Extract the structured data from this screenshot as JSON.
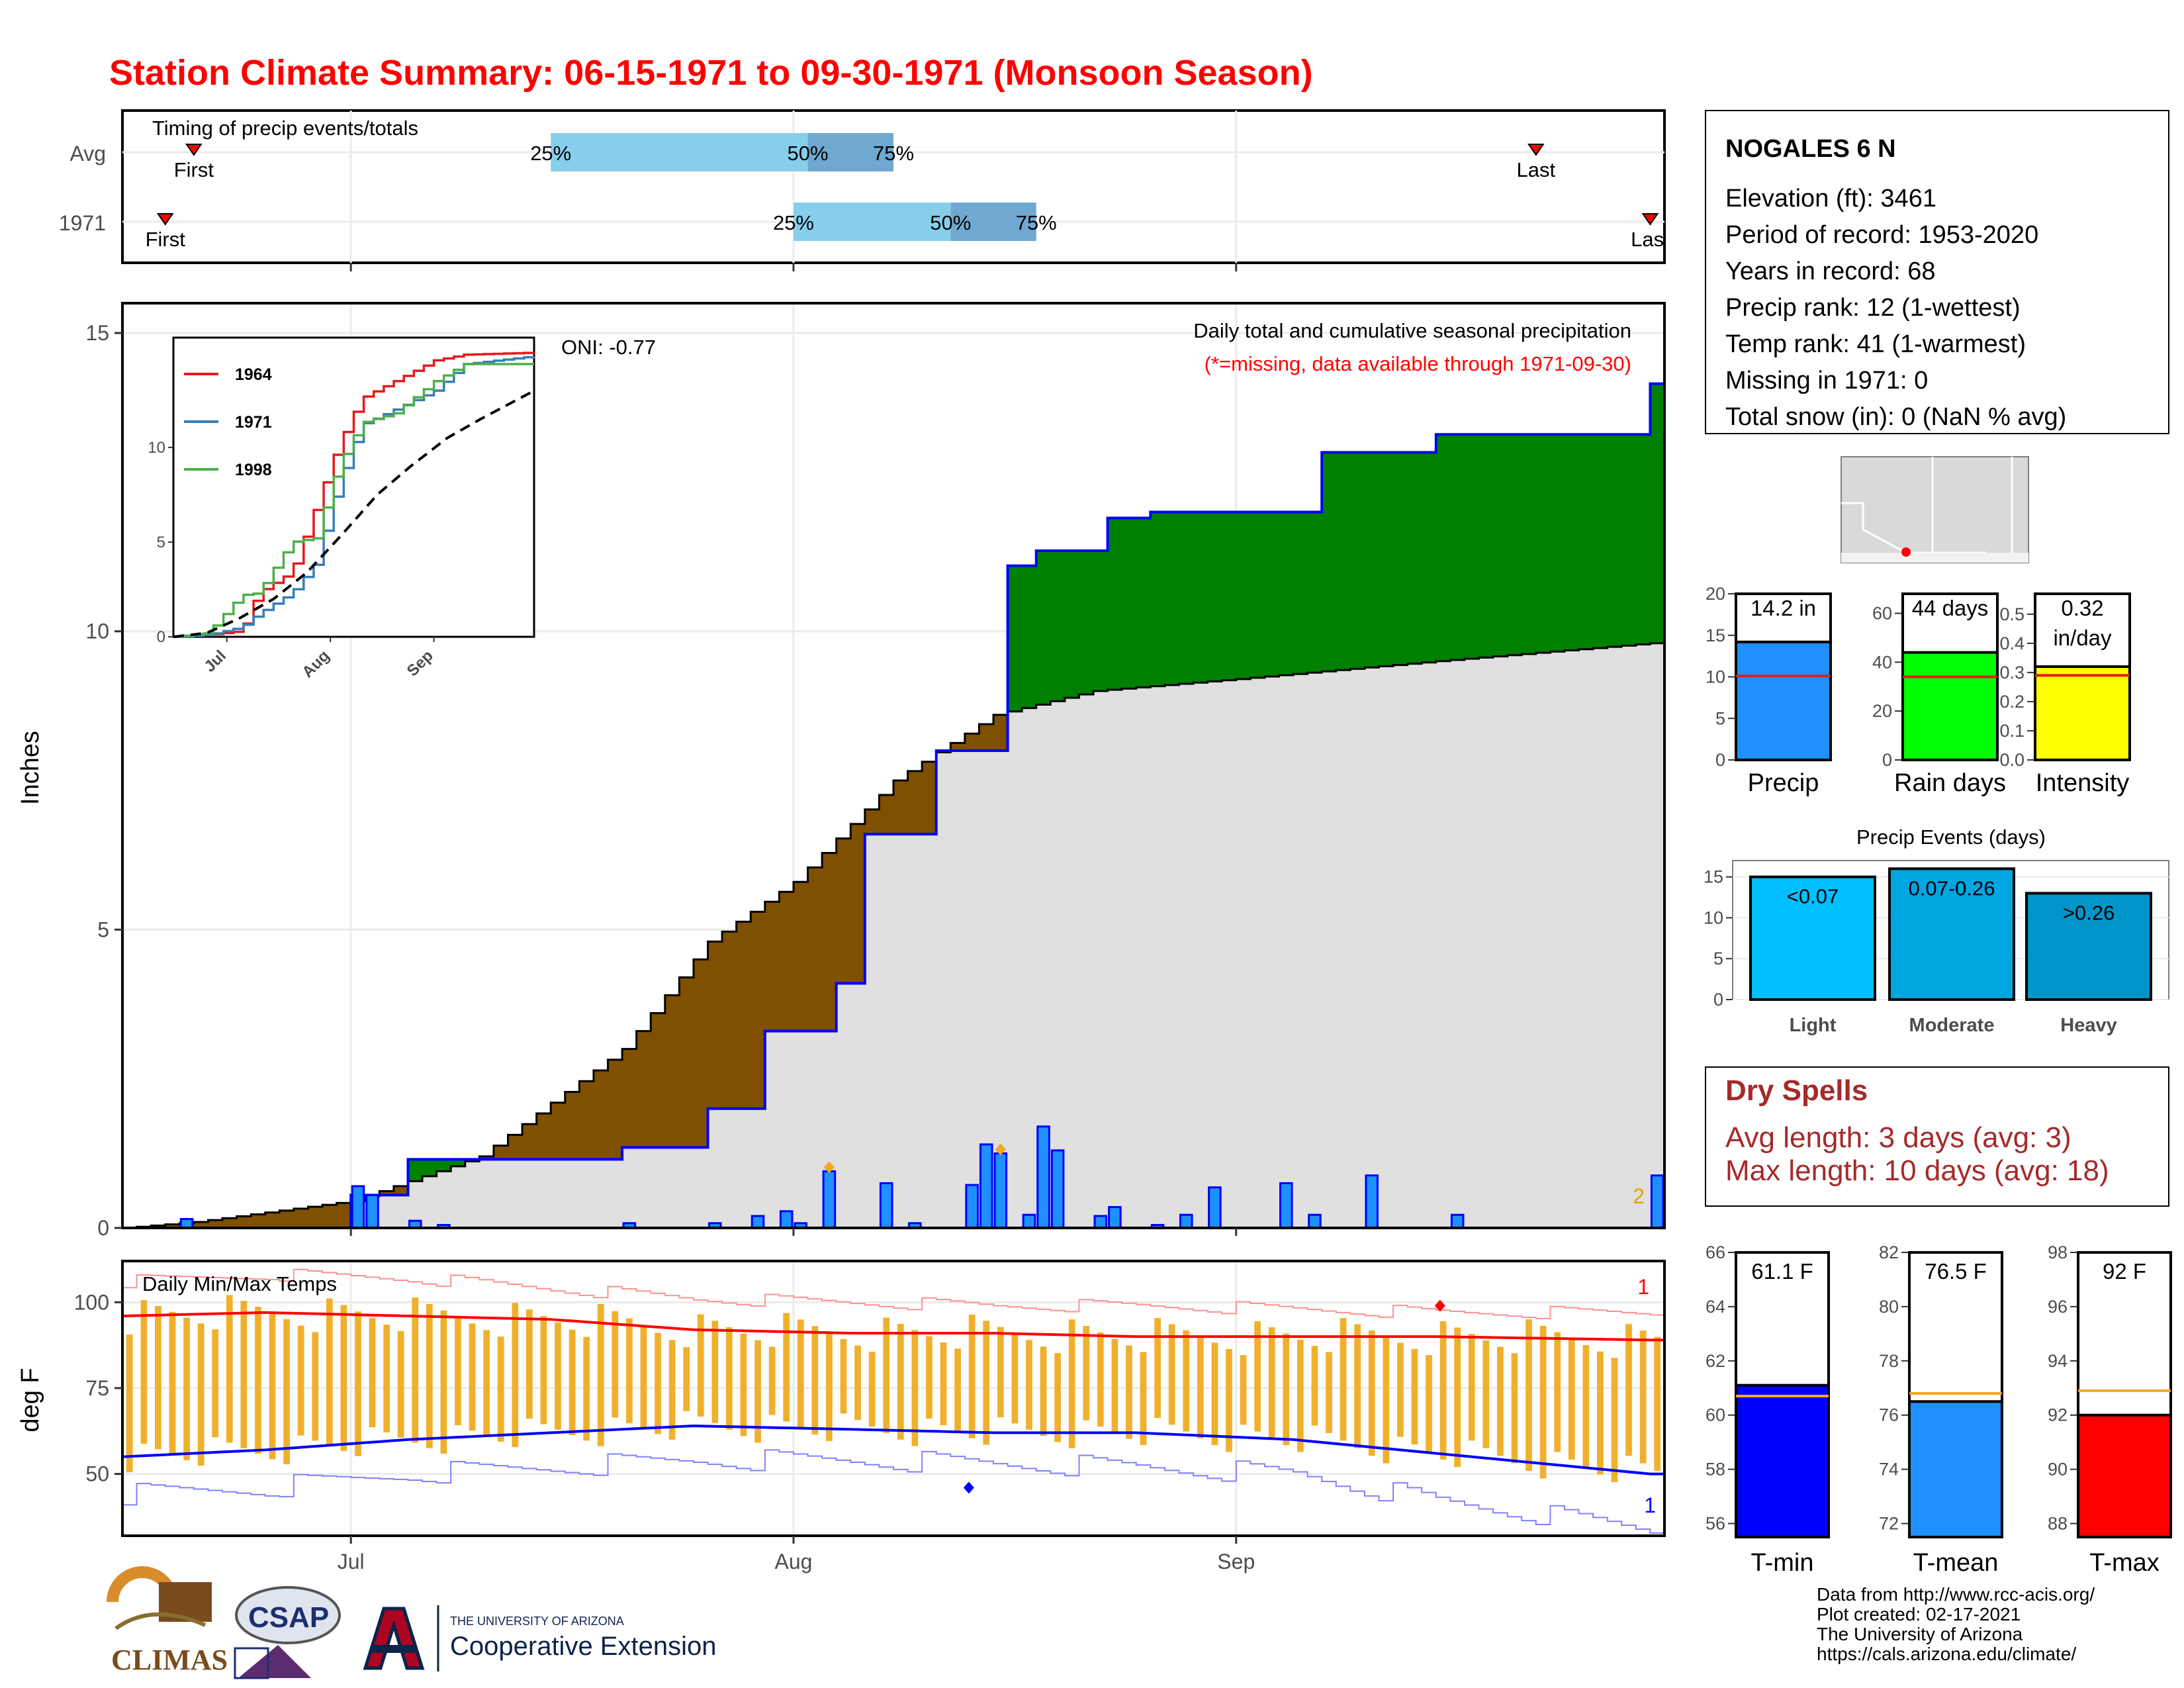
{
  "title": "Station Climate Summary: 06-15-1971 to 09-30-1971 (Monsoon Season)",
  "timing": {
    "label": "Timing of precip events/totals",
    "rows": [
      {
        "name": "Avg",
        "first_label": "First",
        "last_label": "Last",
        "first": "06-20",
        "last": "09-22",
        "q25": "07-15",
        "q50": "08-02",
        "q75": "08-08",
        "p25": "25%",
        "p50": "50%",
        "p75": "75%"
      },
      {
        "name": "1971",
        "first_label": "First",
        "last_label": "Last",
        "first": "06-18",
        "last": "09-30",
        "q25": "08-01",
        "q50": "08-12",
        "q75": "08-18",
        "p25": "25%",
        "p50": "50%",
        "p75": "75%"
      }
    ]
  },
  "info": {
    "station": "NOGALES 6 N",
    "lines": [
      "Elevation (ft): 3461",
      "Period of record: 1953-2020",
      "Years in record: 68",
      "Precip rank: 12 (1-wettest)",
      "Temp rank: 41 (1-warmest)",
      "Missing in 1971: 0",
      "Total snow (in): 0 (NaN % avg)"
    ]
  },
  "main": {
    "ylabel": "Inches",
    "annotation_title": "Daily total and cumulative seasonal precipitation",
    "annotation_missing": "(*=missing, data available through 1971-09-30)",
    "oni": "ONI: -0.77",
    "edge_label": "2",
    "x_ticks": [
      "Jul",
      "Aug",
      "Sep"
    ],
    "y_ticks": [
      "0",
      "5",
      "10",
      "15"
    ]
  },
  "inset": {
    "x_ticks": [
      "Jul",
      "Aug",
      "Sep"
    ],
    "y_ticks": [
      "0",
      "5",
      "10"
    ],
    "legend": [
      {
        "name": "1964",
        "color": "#e41a1c"
      },
      {
        "name": "1971",
        "color": "#377eb8"
      },
      {
        "name": "1998",
        "color": "#4daf4a"
      }
    ]
  },
  "temps": {
    "label": "Daily Min/Max Temps",
    "ylabel": "deg F",
    "y_ticks": [
      "50",
      "75",
      "100"
    ],
    "count_top": "1",
    "count_bottom": "1"
  },
  "bars_top": [
    {
      "name": "Precip",
      "value_label": "14.2 in",
      "value": 14.2,
      "avg": 10.1,
      "ymax": 20,
      "ticks": [
        "0",
        "5",
        "10",
        "15",
        "20"
      ],
      "color": "#1e90ff"
    },
    {
      "name": "Rain days",
      "value_label": "44 days",
      "value": 44,
      "avg": 34,
      "ymax": 68,
      "ticks": [
        "0",
        "20",
        "40",
        "60"
      ],
      "color": "#00ff00"
    },
    {
      "name": "Intensity",
      "value_label": "0.32",
      "value_label2": "in/day",
      "value": 0.32,
      "avg": 0.29,
      "ymax": 0.57,
      "ticks": [
        "0.0",
        "0.1",
        "0.2",
        "0.3",
        "0.4",
        "0.5"
      ],
      "color": "#ffff00"
    }
  ],
  "events": {
    "title": "Precip Events (days)",
    "ticks": [
      "0",
      "5",
      "10",
      "15"
    ],
    "bars": [
      {
        "name": "Light",
        "label": "<0.07",
        "value": 15,
        "color": "#00bfff"
      },
      {
        "name": "Moderate",
        "label": "0.07-0.26",
        "value": 16,
        "color": "#00a6e0"
      },
      {
        "name": "Heavy",
        "label": ">0.26",
        "value": 13,
        "color": "#0095c8"
      }
    ]
  },
  "dry_spells": {
    "title": "Dry Spells",
    "avg": "Avg length: 3 days (avg: 3)",
    "max": "Max length: 10 days (avg: 18)"
  },
  "bars_temp": [
    {
      "name": "T-min",
      "value_label": "61.1 F",
      "value": 61.1,
      "avg": 60.7,
      "ymin": 55.5,
      "ymax": 66,
      "ticks": [
        "56",
        "58",
        "60",
        "62",
        "64",
        "66"
      ],
      "color": "#0000ff"
    },
    {
      "name": "T-mean",
      "value_label": "76.5 F",
      "value": 76.5,
      "avg": 76.8,
      "ymin": 71.5,
      "ymax": 82,
      "ticks": [
        "72",
        "74",
        "76",
        "78",
        "80",
        "82"
      ],
      "color": "#1e90ff"
    },
    {
      "name": "T-max",
      "value_label": "92 F",
      "value": 92,
      "avg": 92.9,
      "ymin": 87.5,
      "ymax": 98,
      "ticks": [
        "88",
        "90",
        "92",
        "94",
        "96",
        "98"
      ],
      "color": "#ff0000"
    }
  ],
  "credits": [
    "Data from http://www.rcc-acis.org/",
    "Plot created: 02-17-2021",
    "The University of Arizona",
    "https://cals.arizona.edu/climate/"
  ],
  "logos": {
    "climas": "CLIMAS",
    "csap": "CSAP",
    "ua_small": "THE UNIVERSITY OF ARIZONA",
    "ua_big": "Cooperative Extension"
  },
  "chart_data": {
    "type": "area",
    "x_start": "06-15",
    "x_end": "09-30",
    "ylabel": "Inches",
    "ylim": [
      0,
      15.5
    ],
    "series": [
      {
        "name": "",
        "x": [
          "06-15",
          "06-20",
          "07-01",
          "07-10",
          "07-20",
          "07-26",
          "08-01",
          "08-08",
          "08-15",
          "08-22",
          "09-01",
          "09-15",
          "09-30"
        ],
        "values": [
          0.0,
          0.1,
          0.45,
          1.2,
          3.0,
          4.8,
          5.8,
          7.5,
          8.6,
          9.0,
          9.2,
          9.5,
          9.8
        ]
      },
      {
        "name": "",
        "x": [
          "06-15",
          "06-20",
          "07-01",
          "07-05",
          "07-20",
          "07-26",
          "07-30",
          "08-04",
          "08-06",
          "08-11",
          "08-16",
          "08-18",
          "08-23",
          "08-26",
          "09-07",
          "09-15",
          "09-30"
        ],
        "values": [
          0.0,
          0.0,
          0.55,
          1.15,
          1.35,
          2.0,
          3.3,
          4.1,
          6.6,
          8.0,
          11.1,
          11.35,
          11.9,
          12.0,
          13.0,
          13.3,
          14.15
        ]
      }
    ],
    "daily_precip": {
      "x": [
        "06-19",
        "07-01",
        "07-02",
        "07-05",
        "07-07",
        "07-20",
        "07-26",
        "07-29",
        "07-31",
        "08-01",
        "08-03",
        "08-07",
        "08-09",
        "08-13",
        "08-14",
        "08-15",
        "08-17",
        "08-18",
        "08-19",
        "08-22",
        "08-23",
        "08-26",
        "08-28",
        "08-30",
        "09-04",
        "09-06",
        "09-10",
        "09-16",
        "09-30"
      ],
      "values": [
        0.15,
        0.7,
        0.55,
        0.12,
        0.05,
        0.08,
        0.08,
        0.2,
        0.28,
        0.08,
        0.95,
        0.75,
        0.08,
        0.72,
        1.4,
        1.25,
        0.22,
        1.7,
        1.3,
        0.2,
        0.35,
        0.05,
        0.22,
        0.68,
        0.75,
        0.22,
        0.88,
        0.22,
        0.88
      ]
    },
    "inset_series": [
      {
        "name": "1964",
        "x": [
          "06-15",
          "06-25",
          "07-05",
          "07-10",
          "07-20",
          "07-27",
          "08-03",
          "08-10",
          "08-20",
          "09-01",
          "09-10",
          "09-30"
        ],
        "values": [
          0,
          0.1,
          0.3,
          2.3,
          3.4,
          6.7,
          10.1,
          12.6,
          13.5,
          14.6,
          14.9,
          15.0
        ]
      },
      {
        "name": "1971",
        "x": [
          "06-15",
          "06-25",
          "07-05",
          "07-10",
          "07-20",
          "07-27",
          "08-03",
          "08-10",
          "08-20",
          "09-01",
          "09-10",
          "09-30"
        ],
        "values": [
          0,
          0.1,
          0.5,
          1.2,
          2.3,
          3.8,
          8.0,
          11.2,
          12.0,
          13.0,
          14.4,
          14.8
        ]
      },
      {
        "name": "1998",
        "x": [
          "06-15",
          "06-25",
          "07-05",
          "07-10",
          "07-20",
          "07-27",
          "08-03",
          "08-10",
          "08-20",
          "09-01",
          "09-10",
          "09-30"
        ],
        "values": [
          0,
          0.2,
          2.2,
          2.3,
          5.0,
          5.2,
          9.0,
          11.3,
          11.8,
          13.5,
          14.4,
          14.4
        ]
      },
      {
        "name": "Avg",
        "x": [
          "06-15",
          "06-25",
          "07-05",
          "07-15",
          "07-25",
          "08-05",
          "08-15",
          "08-25",
          "09-05",
          "09-15",
          "09-30"
        ],
        "values": [
          0,
          0.2,
          1.0,
          2.0,
          3.4,
          5.5,
          7.5,
          9.0,
          10.5,
          11.5,
          12.9
        ]
      }
    ],
    "temps": {
      "ylim": [
        32,
        112
      ],
      "avg_max_x": [
        "06-15",
        "06-25",
        "07-05",
        "07-15",
        "07-25",
        "08-05",
        "08-15",
        "08-25",
        "09-05",
        "09-15",
        "09-30"
      ],
      "avg_max": [
        96,
        97,
        96,
        95,
        92,
        91,
        91,
        90,
        90,
        90,
        89
      ],
      "avg_min_x": [
        "06-15",
        "06-25",
        "07-05",
        "07-15",
        "07-25",
        "08-05",
        "08-15",
        "08-25",
        "09-05",
        "09-15",
        "09-30"
      ],
      "avg_min": [
        55,
        57,
        60,
        62,
        64,
        63,
        62,
        62,
        60,
        56,
        50
      ],
      "record_high_x": [
        "06-15",
        "06-25",
        "07-05",
        "07-15",
        "07-25",
        "08-05",
        "08-15",
        "08-25",
        "09-05",
        "09-15",
        "09-30"
      ],
      "record_high": [
        106,
        108,
        107,
        104,
        101,
        100,
        99,
        99,
        98,
        97,
        97
      ],
      "record_low_x": [
        "06-15",
        "06-25",
        "07-05",
        "07-15",
        "07-25",
        "08-05",
        "08-15",
        "08-25",
        "09-05",
        "09-15",
        "09-30"
      ],
      "record_low": [
        44,
        46,
        50,
        52,
        54,
        54,
        53,
        52,
        50,
        42,
        34
      ],
      "freeze_line": 32
    }
  }
}
